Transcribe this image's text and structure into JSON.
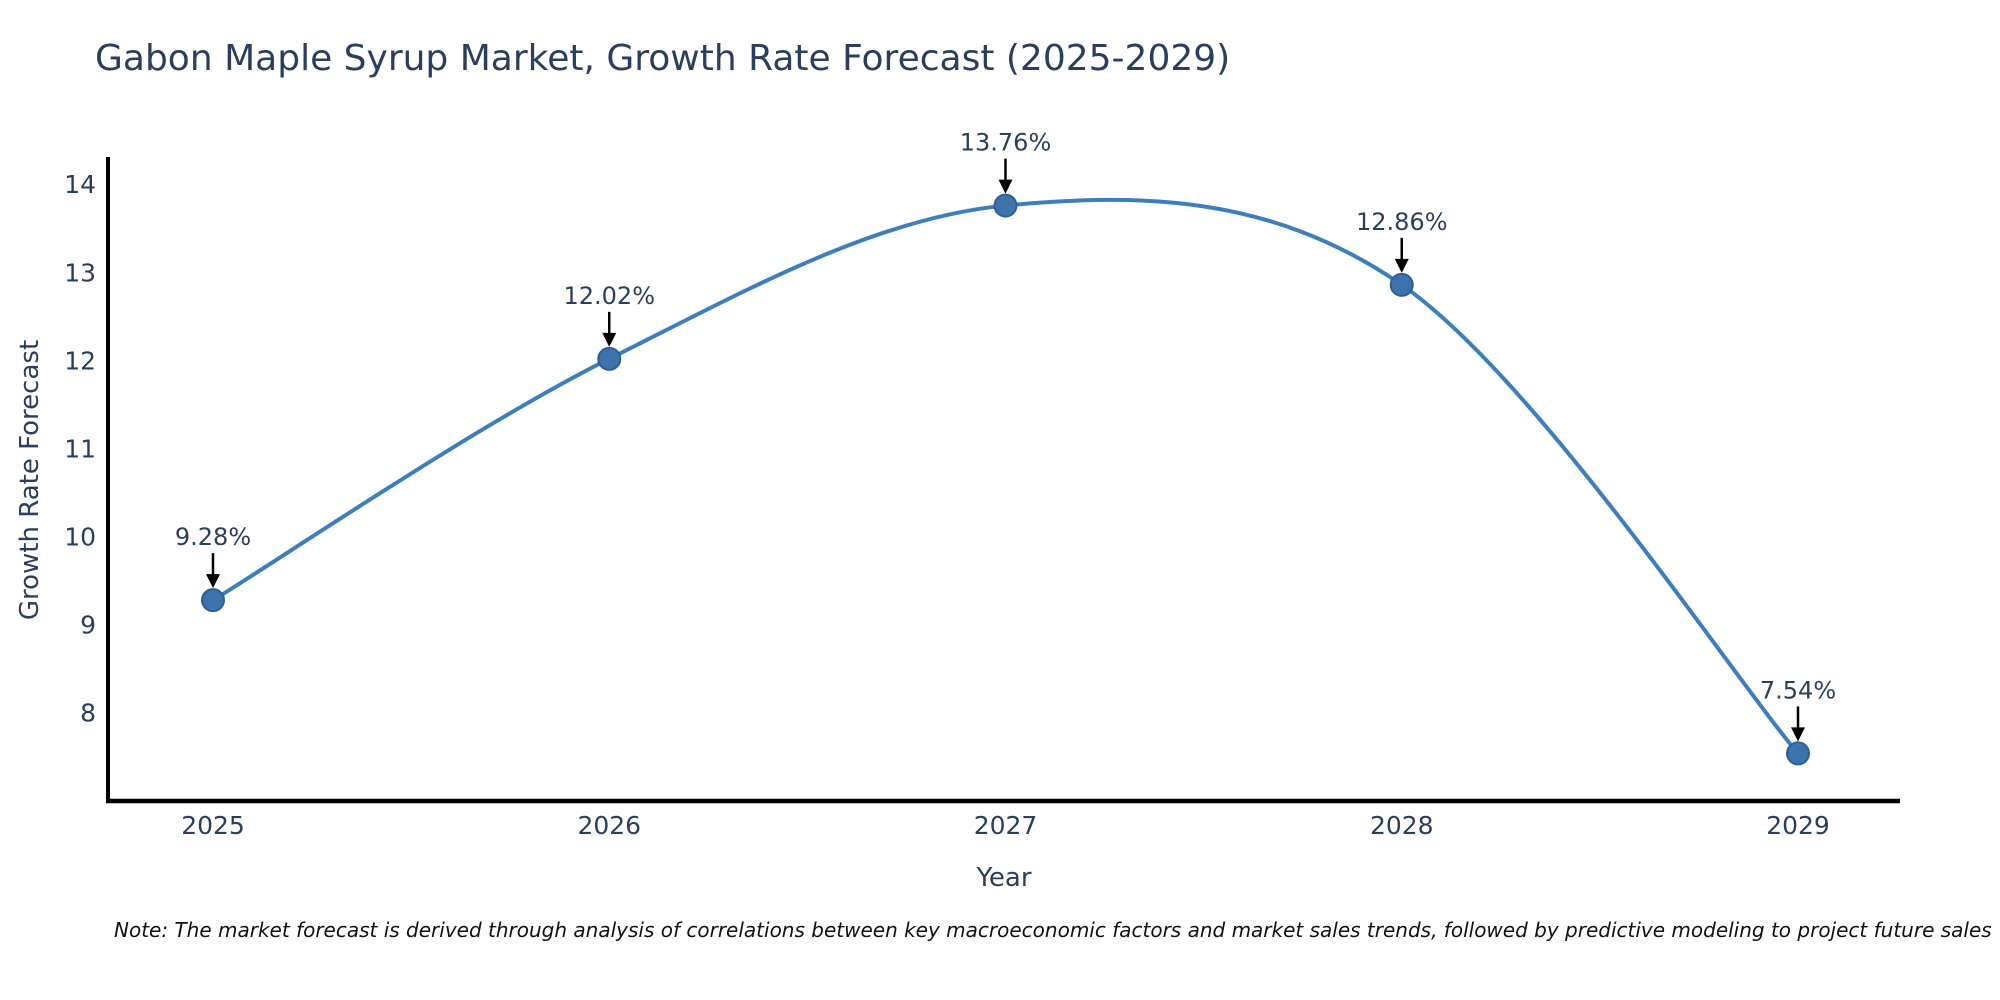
{
  "title": "Gabon Maple Syrup Market, Growth Rate Forecast (2025-2029)",
  "note": "Note: The market forecast is derived through analysis of correlations between key macroeconomic factors and market sales trends, followed by predictive modeling to project future sales",
  "chart_data": {
    "type": "line",
    "title": "Gabon Maple Syrup Market, Growth Rate Forecast (2025-2029)",
    "xlabel": "Year",
    "ylabel": "Growth Rate Forecast",
    "x": [
      "2025",
      "2026",
      "2027",
      "2028",
      "2029"
    ],
    "series": [
      {
        "name": "Growth Rate Forecast",
        "values": [
          9.28,
          12.02,
          13.76,
          12.86,
          7.54
        ]
      }
    ],
    "point_labels": [
      "9.28%",
      "12.02%",
      "13.76%",
      "12.86%",
      "7.54%"
    ],
    "yticks": [
      8,
      9,
      10,
      11,
      12,
      13,
      14
    ],
    "ylim": [
      7.0,
      14.3
    ],
    "line_shape": "spline",
    "grid": false,
    "legend": false,
    "annotations_style": "black-arrow-down-to-point",
    "colors": {
      "line": "#3d7ebc",
      "marker_fill": "#3c73ac",
      "marker_stroke": "#2e5f93",
      "axis": "#000000",
      "text": "#2a3f5f",
      "arrow": "#000000",
      "note_text": "#111111"
    }
  }
}
